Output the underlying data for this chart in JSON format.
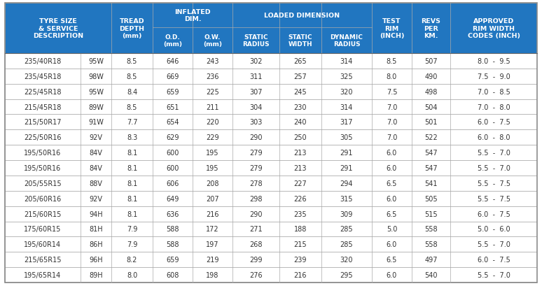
{
  "rows": [
    [
      "235/40R18",
      "95W",
      "8.5",
      "646",
      "243",
      "302",
      "265",
      "314",
      "8.5",
      "507",
      "8.0",
      "-",
      "9.5"
    ],
    [
      "235/45R18",
      "98W",
      "8.5",
      "669",
      "236",
      "311",
      "257",
      "325",
      "8.0",
      "490",
      "7.5",
      "-",
      "9.0"
    ],
    [
      "225/45R18",
      "95W",
      "8.4",
      "659",
      "225",
      "307",
      "245",
      "320",
      "7.5",
      "498",
      "7.0",
      "-",
      "8.5"
    ],
    [
      "215/45R18",
      "89W",
      "8.5",
      "651",
      "211",
      "304",
      "230",
      "314",
      "7.0",
      "504",
      "7.0",
      "-",
      "8.0"
    ],
    [
      "215/50R17",
      "91W",
      "7.7",
      "654",
      "220",
      "303",
      "240",
      "317",
      "7.0",
      "501",
      "6.0",
      "-",
      "7.5"
    ],
    [
      "225/50R16",
      "92V",
      "8.3",
      "629",
      "229",
      "290",
      "250",
      "305",
      "7.0",
      "522",
      "6.0",
      "-",
      "8.0"
    ],
    [
      "195/50R16",
      "84V",
      "8.1",
      "600",
      "195",
      "279",
      "213",
      "291",
      "6.0",
      "547",
      "5.5",
      "-",
      "7.0"
    ],
    [
      "195/50R16",
      "84V",
      "8.1",
      "600",
      "195",
      "279",
      "213",
      "291",
      "6.0",
      "547",
      "5.5",
      "-",
      "7.0"
    ],
    [
      "205/55R15",
      "88V",
      "8.1",
      "606",
      "208",
      "278",
      "227",
      "294",
      "6.5",
      "541",
      "5.5",
      "-",
      "7.5"
    ],
    [
      "205/60R16",
      "92V",
      "8.1",
      "649",
      "207",
      "298",
      "226",
      "315",
      "6.0",
      "505",
      "5.5",
      "-",
      "7.5"
    ],
    [
      "215/60R15",
      "94H",
      "8.1",
      "636",
      "216",
      "290",
      "235",
      "309",
      "6.5",
      "515",
      "6.0",
      "-",
      "7.5"
    ],
    [
      "175/60R15",
      "81H",
      "7.9",
      "588",
      "172",
      "271",
      "188",
      "285",
      "5.0",
      "558",
      "5.0",
      "-",
      "6.0"
    ],
    [
      "195/60R14",
      "86H",
      "7.9",
      "588",
      "197",
      "268",
      "215",
      "285",
      "6.0",
      "558",
      "5.5",
      "-",
      "7.0"
    ],
    [
      "215/65R15",
      "96H",
      "8.2",
      "659",
      "219",
      "299",
      "239",
      "320",
      "6.5",
      "497",
      "6.0",
      "-",
      "7.5"
    ],
    [
      "195/65R14",
      "89H",
      "8.0",
      "608",
      "198",
      "276",
      "216",
      "295",
      "6.0",
      "540",
      "5.5",
      "-",
      "7.0"
    ]
  ],
  "header_bg": "#2176C0",
  "header_fg": "#FFFFFF",
  "data_bg": "#FFFFFF",
  "data_fg": "#333333",
  "border_color": "#AAAAAA",
  "outer_border": "#888888",
  "fig_bg": "#FFFFFF"
}
